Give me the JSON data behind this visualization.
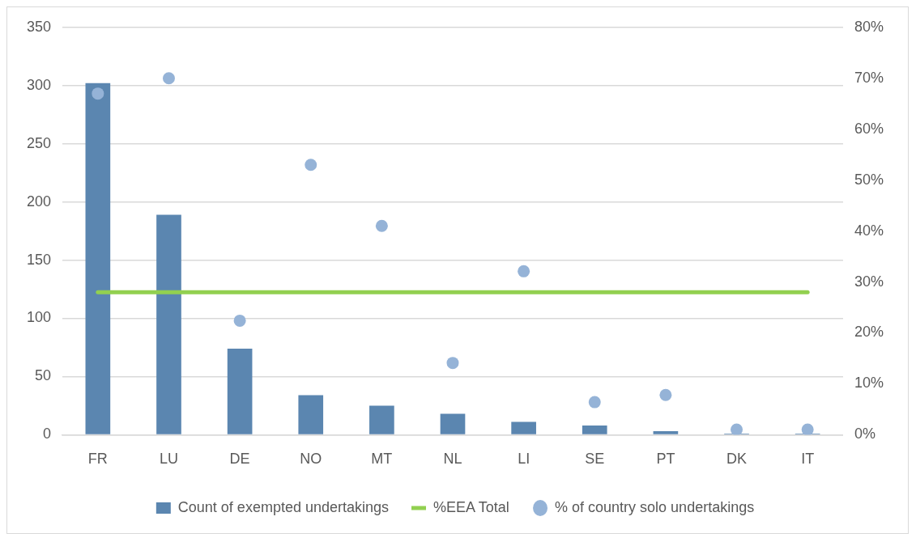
{
  "chart_data": {
    "type": "bar",
    "categories": [
      "FR",
      "LU",
      "DE",
      "NO",
      "MT",
      "NL",
      "LI",
      "SE",
      "PT",
      "DK",
      "IT"
    ],
    "series": [
      {
        "name": "Count of exempted undertakings",
        "type": "bar",
        "color": "#5b86b0",
        "values": [
          302,
          189,
          74,
          34,
          25,
          18,
          11,
          8,
          3,
          1,
          1
        ]
      },
      {
        "name": "%EEA Total",
        "type": "line",
        "axis": "y2",
        "color": "#92d050",
        "marker": "none",
        "values": [
          28,
          28,
          28,
          28,
          28,
          28,
          28,
          28,
          28,
          28,
          28
        ]
      },
      {
        "name": "% of country solo undertakings",
        "type": "scatter",
        "axis": "y2",
        "color": "#95b3d7",
        "marker": "circle",
        "x": [
          "FR",
          "LU",
          "DE",
          "NO",
          "MT",
          "NL",
          "LI",
          "SE",
          "PT",
          "DK",
          "IT"
        ],
        "values": [
          67,
          70,
          22.4,
          53,
          41,
          14.1,
          32.1,
          6.4,
          7.8,
          1,
          1
        ]
      }
    ],
    "ylim": [
      0,
      350
    ],
    "yticks": [
      0,
      50,
      100,
      150,
      200,
      250,
      300,
      350
    ],
    "y2lim": [
      0,
      80
    ],
    "y2ticks": [
      {
        "value": 0,
        "label": "0%"
      },
      {
        "value": 10,
        "label": "10%"
      },
      {
        "value": 20,
        "label": "20%"
      },
      {
        "value": 30,
        "label": "30%"
      },
      {
        "value": 40,
        "label": "40%"
      },
      {
        "value": 50,
        "label": "50%"
      },
      {
        "value": 60,
        "label": "60%"
      },
      {
        "value": 70,
        "label": "70%"
      },
      {
        "value": 80,
        "label": "80%"
      }
    ],
    "grid": "y",
    "legend": "bottom"
  }
}
